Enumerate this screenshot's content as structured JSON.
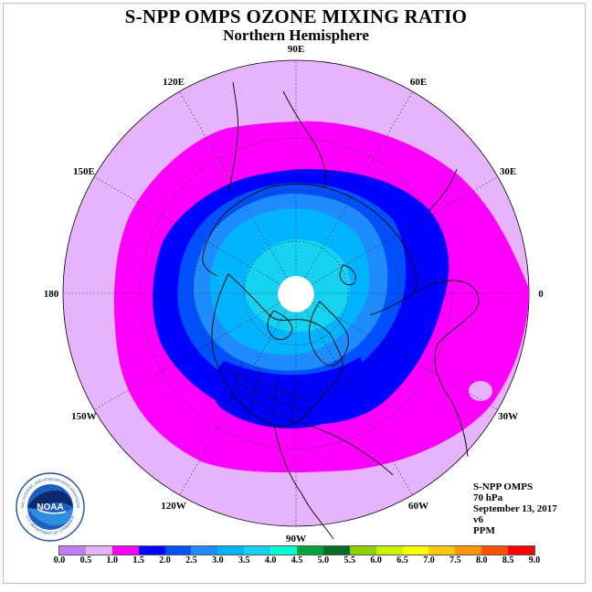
{
  "title": "S-NPP OMPS OZONE MIXING RATIO",
  "subtitle": "Northern Hemisphere",
  "longitude_labels": [
    "90E",
    "60E",
    "30E",
    "0",
    "30W",
    "60W",
    "90W",
    "120W",
    "150W",
    "180",
    "150E",
    "120E"
  ],
  "info": {
    "product": "S-NPP OMPS",
    "level": "70 hPa",
    "date": "September 13, 2017",
    "version": "v6",
    "unit": "PPM"
  },
  "colorbar": {
    "ticks": [
      "0.0",
      "0.5",
      "1.0",
      "1.5",
      "2.0",
      "2.5",
      "3.0",
      "3.5",
      "4.0",
      "4.5",
      "5.0",
      "5.5",
      "6.0",
      "6.5",
      "7.0",
      "7.5",
      "8.0",
      "8.5",
      "9.0"
    ],
    "colors": [
      "#c27ff5",
      "#e6b3ff",
      "#ff00ff",
      "#0000ff",
      "#0050ff",
      "#1e8cff",
      "#00b4ff",
      "#14d2f0",
      "#00ffd2",
      "#00a03c",
      "#006e28",
      "#8cd200",
      "#c8f000",
      "#ffff00",
      "#ffc800",
      "#ff9600",
      "#ff5000",
      "#ff0000",
      "#8b4a2a"
    ]
  },
  "map_colors": {
    "outer": "#e6b3ff",
    "ring_1_0": "#ff00ff",
    "ring_1_5": "#0000ff",
    "ring_2_0": "#0050ff",
    "ring_2_5": "#1e8cff",
    "ring_3_0": "#00b4ff",
    "ring_3_5": "#14d2f0",
    "pole": "#ffffff"
  },
  "logo": {
    "text": "NOAA",
    "ring_text": "NATIONAL OCEANIC AND ATMOSPHERIC ADMINISTRATION",
    "ring_text_bottom": "U.S. DEPARTMENT OF COMMERCE"
  }
}
